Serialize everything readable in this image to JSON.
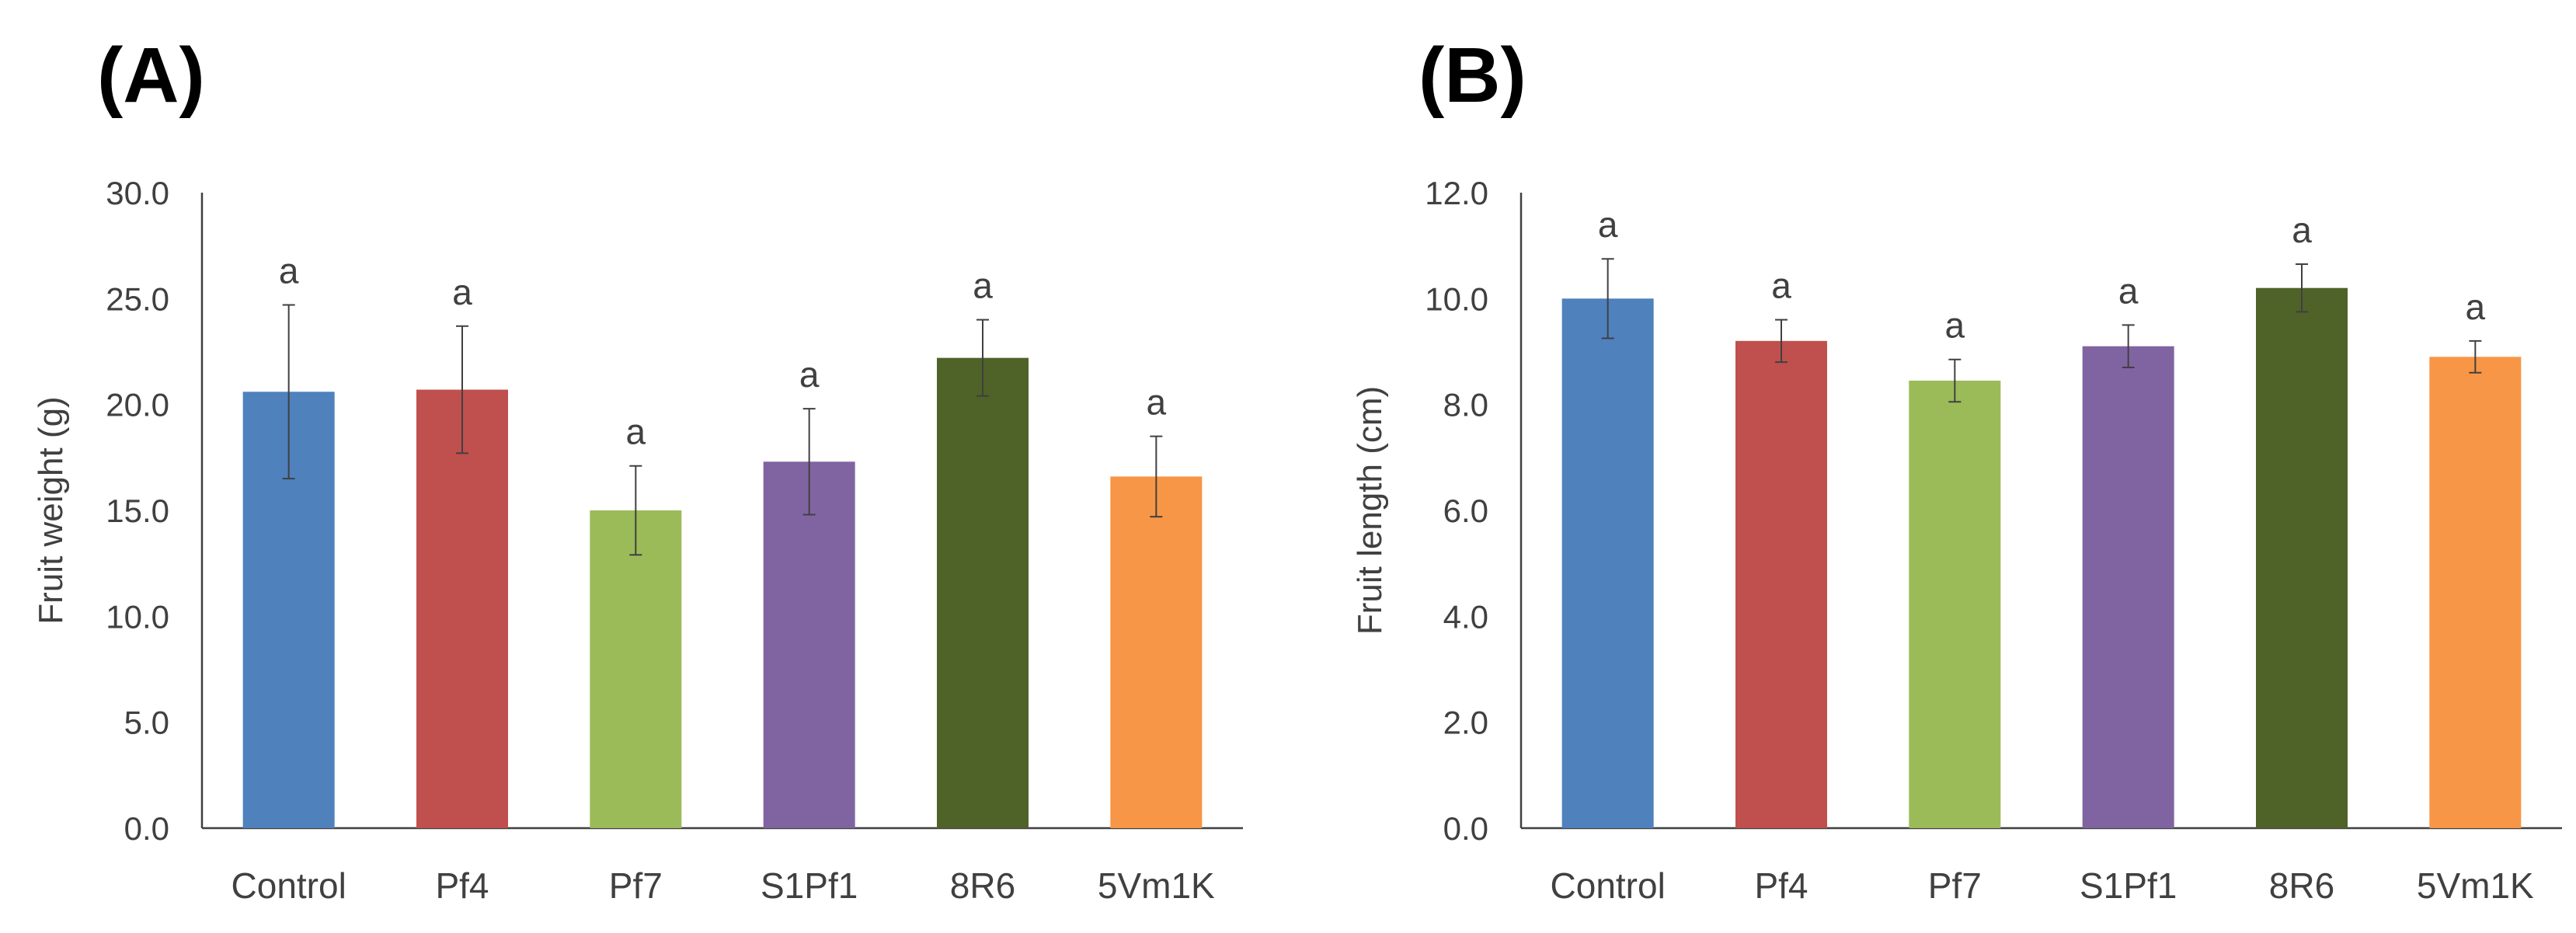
{
  "chart_data": [
    {
      "panel_label": "(A)",
      "type": "bar",
      "categories": [
        "Control",
        "Pf4",
        "Pf7",
        "S1Pf1",
        "8R6",
        "5Vm1K"
      ],
      "values": [
        20.6,
        20.7,
        15.0,
        17.3,
        22.2,
        16.6
      ],
      "errors": [
        4.1,
        3.0,
        2.1,
        2.5,
        1.8,
        1.9
      ],
      "significance": [
        "a",
        "a",
        "a",
        "a",
        "a",
        "a"
      ],
      "colors": [
        "#4f81bd",
        "#c0504d",
        "#9bbb59",
        "#8064a2",
        "#4f6228",
        "#f79646"
      ],
      "ylabel": "Fruit weight (g)",
      "ylim": [
        0,
        30
      ],
      "yticks": [
        "0.0",
        "5.0",
        "10.0",
        "15.0",
        "20.0",
        "25.0",
        "30.0"
      ],
      "grid": false
    },
    {
      "panel_label": "(B)",
      "type": "bar",
      "categories": [
        "Control",
        "Pf4",
        "Pf7",
        "S1Pf1",
        "8R6",
        "5Vm1K"
      ],
      "values": [
        10.0,
        9.2,
        8.45,
        9.1,
        10.2,
        8.9
      ],
      "errors": [
        0.75,
        0.4,
        0.4,
        0.4,
        0.45,
        0.3
      ],
      "significance": [
        "a",
        "a",
        "a",
        "a",
        "a",
        "a"
      ],
      "colors": [
        "#4f81bd",
        "#c0504d",
        "#9bbb59",
        "#8064a2",
        "#4f6228",
        "#f79646"
      ],
      "ylabel": "Fruit length (cm)",
      "ylim": [
        0,
        12
      ],
      "yticks": [
        "0.0",
        "2.0",
        "4.0",
        "6.0",
        "8.0",
        "10.0",
        "12.0"
      ],
      "grid": false
    }
  ]
}
